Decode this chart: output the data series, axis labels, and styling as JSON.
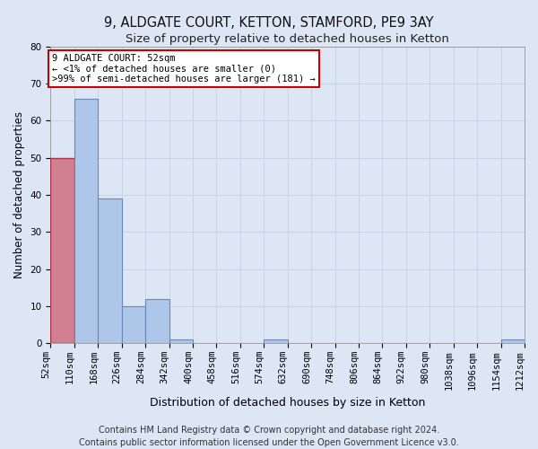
{
  "title1": "9, ALDGATE COURT, KETTON, STAMFORD, PE9 3AY",
  "title2": "Size of property relative to detached houses in Ketton",
  "xlabel": "Distribution of detached houses by size in Ketton",
  "ylabel": "Number of detached properties",
  "footer1": "Contains HM Land Registry data © Crown copyright and database right 2024.",
  "footer2": "Contains public sector information licensed under the Open Government Licence v3.0.",
  "annotation_title": "9 ALDGATE COURT: 52sqm",
  "annotation_line1": "← <1% of detached houses are smaller (0)",
  "annotation_line2": ">99% of semi-detached houses are larger (181) →",
  "bar_edges": [
    52,
    110,
    168,
    226,
    284,
    342,
    400,
    458,
    516,
    574,
    632,
    690,
    748,
    806,
    864,
    922,
    980,
    1038,
    1096,
    1154,
    1212
  ],
  "bar_labels": [
    "52sqm",
    "110sqm",
    "168sqm",
    "226sqm",
    "284sqm",
    "342sqm",
    "400sqm",
    "458sqm",
    "516sqm",
    "574sqm",
    "632sqm",
    "690sqm",
    "748sqm",
    "806sqm",
    "864sqm",
    "922sqm",
    "980sqm",
    "1038sqm",
    "1096sqm",
    "1154sqm",
    "1212sqm"
  ],
  "bar_heights": [
    50,
    66,
    39,
    10,
    12,
    1,
    0,
    0,
    0,
    1,
    0,
    0,
    0,
    0,
    0,
    0,
    0,
    0,
    0,
    1,
    0
  ],
  "highlight_bar_index": 0,
  "bar_color": "#aec6e8",
  "highlight_color": "#d08090",
  "bar_edge_color": "#6688bb",
  "highlight_edge_color": "#aa3344",
  "annotation_box_color": "#ffffff",
  "annotation_box_edge": "#cc0000",
  "ylim": [
    0,
    80
  ],
  "yticks": [
    0,
    10,
    20,
    30,
    40,
    50,
    60,
    70,
    80
  ],
  "grid_color": "#c8cfe0",
  "bg_color": "#dce6f5",
  "title1_fontsize": 10.5,
  "title2_fontsize": 9.5,
  "xlabel_fontsize": 9,
  "ylabel_fontsize": 8.5,
  "tick_fontsize": 7.5,
  "annot_fontsize": 7.5,
  "footer_fontsize": 7
}
